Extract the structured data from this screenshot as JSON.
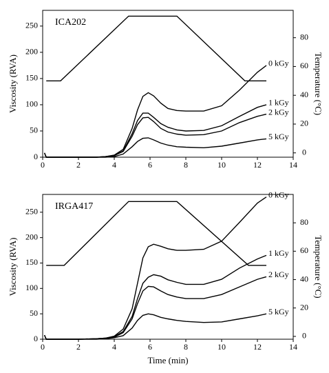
{
  "chart_data": [
    {
      "type": "line",
      "title": "ICA202",
      "y_label": "Viscosity (RVA)",
      "y2_label": "Temperature (°C)",
      "xlim": [
        0,
        14
      ],
      "xticks": [
        0,
        2,
        4,
        6,
        8,
        10,
        12,
        14
      ],
      "ylim": [
        0,
        280
      ],
      "yticks": [
        0,
        50,
        100,
        150,
        200,
        250
      ],
      "y2lim": [
        -3,
        99
      ],
      "y2ticks": [
        0,
        20,
        40,
        60,
        80
      ],
      "series": [
        {
          "name": "0 kGy",
          "color": "#000000",
          "x": [
            0.1,
            0.2,
            0.4,
            1,
            2,
            3,
            3.5,
            4,
            4.5,
            5,
            5.3,
            5.6,
            5.9,
            6.2,
            6.6,
            7,
            7.5,
            8,
            9,
            10,
            11,
            12,
            12.5
          ],
          "values": [
            8,
            0,
            0,
            0,
            0,
            0,
            1,
            4,
            15,
            55,
            90,
            116,
            123,
            117,
            103,
            93,
            89,
            88,
            88,
            98,
            128,
            162,
            175
          ]
        },
        {
          "name": "1 kGy",
          "color": "#000000",
          "x": [
            0.1,
            0.2,
            0.4,
            1,
            2,
            3,
            3.5,
            4,
            4.5,
            5,
            5.3,
            5.6,
            5.9,
            6.2,
            6.6,
            7,
            7.5,
            8,
            9,
            10,
            11,
            12,
            12.5
          ],
          "values": [
            8,
            0,
            0,
            0,
            0,
            0,
            1,
            3,
            12,
            45,
            70,
            84,
            84,
            76,
            64,
            57,
            52,
            50,
            51,
            60,
            78,
            95,
            100
          ]
        },
        {
          "name": "2 kGy",
          "color": "#000000",
          "x": [
            0.1,
            0.2,
            0.4,
            1,
            2,
            3,
            3.5,
            4,
            4.5,
            5,
            5.3,
            5.6,
            5.9,
            6.2,
            6.6,
            7,
            7.5,
            8,
            9,
            10,
            11,
            12,
            12.5
          ],
          "values": [
            8,
            0,
            0,
            0,
            0,
            0,
            1,
            3,
            11,
            40,
            62,
            75,
            76,
            68,
            55,
            48,
            44,
            42,
            43,
            50,
            66,
            78,
            82
          ]
        },
        {
          "name": "5 kGy",
          "color": "#000000",
          "x": [
            0.1,
            0.2,
            0.4,
            1,
            2,
            3,
            3.5,
            4,
            4.5,
            5,
            5.3,
            5.6,
            5.9,
            6.2,
            6.6,
            7,
            7.5,
            8,
            9,
            10,
            11,
            12,
            12.5
          ],
          "values": [
            8,
            0,
            0,
            0,
            0,
            0,
            0,
            1,
            6,
            20,
            30,
            36,
            37,
            33,
            27,
            23,
            20,
            19,
            18,
            21,
            27,
            33,
            35
          ]
        },
        {
          "color": "#000000",
          "axis": "y2",
          "x": [
            0.2,
            1,
            4.8,
            7.5,
            11.3,
            12.5
          ],
          "values": [
            50,
            50,
            95,
            95,
            50,
            50
          ]
        }
      ]
    },
    {
      "type": "line",
      "title": "IRGA417",
      "x_label": "Time (min)",
      "y_label": "Viscosity (RVA)",
      "y2_label": "Temperature (°C)",
      "xlim": [
        0,
        14
      ],
      "xticks": [
        0,
        2,
        4,
        6,
        8,
        10,
        12,
        14
      ],
      "ylim": [
        0,
        285
      ],
      "yticks": [
        0,
        50,
        100,
        150,
        200,
        250
      ],
      "y2lim": [
        -2,
        100
      ],
      "y2ticks": [
        0,
        20,
        40,
        60,
        80
      ],
      "series": [
        {
          "name": "0 kGy",
          "color": "#000000",
          "x": [
            0.1,
            0.2,
            0.4,
            1,
            2,
            3,
            3.5,
            4,
            4.5,
            5,
            5.3,
            5.6,
            5.9,
            6.2,
            6.6,
            7,
            7.5,
            8,
            9,
            10,
            11,
            12,
            12.5
          ],
          "values": [
            8,
            0,
            0,
            0,
            0,
            1,
            2,
            6,
            20,
            60,
            110,
            160,
            182,
            187,
            183,
            178,
            175,
            175,
            177,
            193,
            230,
            268,
            280
          ]
        },
        {
          "name": "1 kGy",
          "color": "#000000",
          "x": [
            0.1,
            0.2,
            0.4,
            1,
            2,
            3,
            3.5,
            4,
            4.5,
            5,
            5.3,
            5.6,
            5.9,
            6.2,
            6.6,
            7,
            7.5,
            8,
            9,
            10,
            11,
            12,
            12.5
          ],
          "values": [
            8,
            0,
            0,
            0,
            0,
            1,
            2,
            5,
            15,
            45,
            80,
            110,
            122,
            127,
            124,
            117,
            112,
            108,
            108,
            118,
            140,
            158,
            165
          ]
        },
        {
          "name": "2 kGy",
          "color": "#000000",
          "x": [
            0.1,
            0.2,
            0.4,
            1,
            2,
            3,
            3.5,
            4,
            4.5,
            5,
            5.3,
            5.6,
            5.9,
            6.2,
            6.6,
            7,
            7.5,
            8,
            9,
            10,
            11,
            12,
            12.5
          ],
          "values": [
            8,
            0,
            0,
            0,
            0,
            1,
            2,
            4,
            13,
            40,
            70,
            95,
            104,
            103,
            95,
            88,
            83,
            80,
            80,
            88,
            103,
            118,
            123
          ]
        },
        {
          "name": "5 kGy",
          "color": "#000000",
          "x": [
            0.1,
            0.2,
            0.4,
            1,
            2,
            3,
            3.5,
            4,
            4.5,
            5,
            5.3,
            5.6,
            5.9,
            6.2,
            6.6,
            7,
            7.5,
            8,
            9,
            10,
            11,
            12,
            12.5
          ],
          "values": [
            8,
            0,
            0,
            0,
            0,
            0,
            1,
            3,
            7,
            22,
            37,
            47,
            50,
            48,
            43,
            40,
            37,
            35,
            33,
            34,
            40,
            46,
            50
          ]
        },
        {
          "color": "#000000",
          "axis": "y2",
          "x": [
            0.2,
            1.2,
            4.8,
            7.5,
            11.5,
            12.5
          ],
          "values": [
            50,
            50,
            95,
            95,
            50,
            50
          ]
        }
      ]
    }
  ]
}
